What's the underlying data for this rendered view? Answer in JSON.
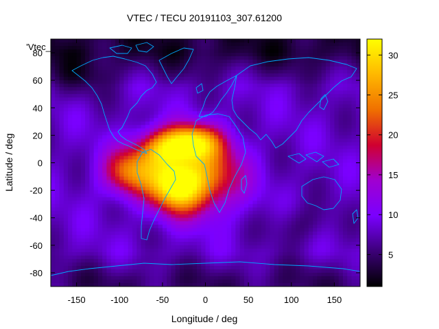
{
  "chart_data": {
    "type": "heatmap",
    "title": "VTEC / TECU 20191103_307.61200",
    "xlabel": "Longitude / deg",
    "ylabel": "Latitude / deg",
    "xlim": [
      -180,
      180
    ],
    "ylim": [
      -90,
      90
    ],
    "x_ticks": [
      -150,
      -100,
      -50,
      0,
      50,
      100,
      150
    ],
    "y_ticks": [
      -80,
      -60,
      -40,
      -20,
      0,
      20,
      40,
      60,
      80
    ],
    "y_tick_label_overlay": "'Vtec_",
    "colorbar": {
      "range": [
        1,
        32
      ],
      "ticks": [
        5,
        10,
        15,
        20,
        25,
        30
      ],
      "colormap": [
        "#000000",
        "#3c0078",
        "#7a00ff",
        "#a000d0",
        "#d00030",
        "#f07000",
        "#ffb800",
        "#ffff00"
      ]
    },
    "field": {
      "background_tecu": 8,
      "polar_north_tecu": 3,
      "polar_south_tecu": 5,
      "peaks": [
        {
          "lon": -35,
          "lat": -16,
          "tecu": 31,
          "sigma_lon": 22,
          "sigma_lat": 14
        },
        {
          "lon": -18,
          "lat": 15,
          "tecu": 28,
          "sigma_lon": 24,
          "sigma_lat": 9
        },
        {
          "lon": -88,
          "lat": -7,
          "tecu": 23,
          "sigma_lon": 22,
          "sigma_lat": 12
        },
        {
          "lon": 5,
          "lat": -10,
          "tecu": 22,
          "sigma_lon": 28,
          "sigma_lat": 18
        },
        {
          "lon": -55,
          "lat": 10,
          "tecu": 20,
          "sigma_lon": 20,
          "sigma_lat": 10
        }
      ],
      "lows": [
        {
          "lon": 110,
          "lat": -45,
          "tecu": -3,
          "sigma_lon": 25,
          "sigma_lat": 10
        },
        {
          "lon": -150,
          "lat": 60,
          "tecu": -3,
          "sigma_lon": 30,
          "sigma_lat": 10
        }
      ]
    }
  }
}
